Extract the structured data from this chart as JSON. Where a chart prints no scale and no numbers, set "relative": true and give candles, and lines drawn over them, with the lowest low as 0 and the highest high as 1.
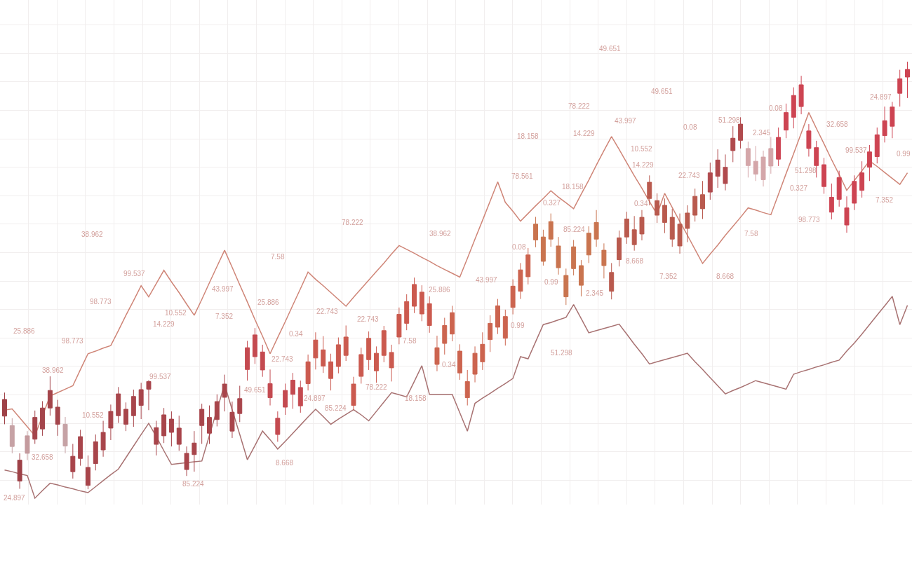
{
  "chart_data": {
    "type": "candlestick",
    "relative": true,
    "grid": true,
    "categories": [
      null,
      null,
      null,
      null,
      null,
      null,
      null,
      null,
      null,
      null,
      null,
      null,
      null,
      null,
      null,
      null,
      null,
      null,
      null,
      null,
      null,
      null,
      null,
      null,
      null,
      null,
      null,
      null,
      null,
      null,
      null,
      null,
      null,
      null,
      null,
      null,
      null,
      null,
      null,
      null,
      null,
      null,
      null,
      null,
      null,
      null,
      null,
      null,
      null,
      null,
      null,
      null,
      null,
      null,
      null,
      null,
      null,
      null,
      null,
      null,
      null,
      null,
      null,
      null,
      null,
      null,
      null,
      null,
      null,
      null,
      null,
      null,
      null,
      null,
      null,
      null,
      null,
      null,
      null,
      null,
      null,
      null,
      null,
      null,
      null,
      null,
      null,
      null,
      null,
      null,
      null,
      null,
      null,
      null,
      null,
      null,
      null,
      null,
      null,
      null,
      null,
      null,
      null,
      null,
      null,
      null,
      null,
      null,
      null,
      null,
      null,
      null,
      null,
      null,
      null,
      null,
      null,
      null,
      null,
      null
    ],
    "ohlc": [
      [
        0.171,
        0.226,
        0.152,
        0.21
      ],
      [
        0.1,
        0.166,
        0.084,
        0.149
      ],
      [
        0.019,
        0.084,
        0.001,
        0.068
      ],
      [
        0.084,
        0.136,
        0.068,
        0.125
      ],
      [
        0.117,
        0.184,
        0.106,
        0.168
      ],
      [
        0.141,
        0.206,
        0.125,
        0.19
      ],
      [
        0.19,
        0.264,
        0.172,
        0.231
      ],
      [
        0.152,
        0.209,
        0.125,
        0.192
      ],
      [
        0.101,
        0.169,
        0.084,
        0.152
      ],
      [
        0.041,
        0.106,
        0.025,
        0.077
      ],
      [
        0.072,
        0.139,
        0.055,
        0.123
      ],
      [
        0.009,
        0.079,
        0,
        0.051
      ],
      [
        0.06,
        0.128,
        0.044,
        0.111
      ],
      [
        0.092,
        0.16,
        0.076,
        0.133
      ],
      [
        0.143,
        0.198,
        0.115,
        0.182
      ],
      [
        0.172,
        0.239,
        0.155,
        0.223
      ],
      [
        0.152,
        0.203,
        0.136,
        0.187
      ],
      [
        0.172,
        0.233,
        0.146,
        0.217
      ],
      [
        0.196,
        0.249,
        0.164,
        0.233
      ],
      [
        0.234,
        0.255,
        0.185,
        0.252
      ],
      [
        0.105,
        0.16,
        0.079,
        0.144
      ],
      [
        0.125,
        0.19,
        0.108,
        0.174
      ],
      [
        0.133,
        0.182,
        0.1,
        0.164
      ],
      [
        0.105,
        0.172,
        0.09,
        0.143
      ],
      [
        0.046,
        0.1,
        0.031,
        0.084
      ],
      [
        0.081,
        0.136,
        0.041,
        0.108
      ],
      [
        0.149,
        0.2,
        0.106,
        0.187
      ],
      [
        0.131,
        0.196,
        0.106,
        0.168
      ],
      [
        0.163,
        0.222,
        0.147,
        0.205
      ],
      [
        0.215,
        0.268,
        0.182,
        0.246
      ],
      [
        0.136,
        0.205,
        0.12,
        0.18
      ],
      [
        0.177,
        0.242,
        0.157,
        0.212
      ],
      [
        0.28,
        0.347,
        0.254,
        0.331
      ],
      [
        0.31,
        0.377,
        0.293,
        0.361
      ],
      [
        0.279,
        0.338,
        0.263,
        0.321
      ],
      [
        0.214,
        0.28,
        0.196,
        0.247
      ],
      [
        0.128,
        0.182,
        0.111,
        0.166
      ],
      [
        0.192,
        0.247,
        0.174,
        0.231
      ],
      [
        0.222,
        0.272,
        0.188,
        0.255
      ],
      [
        0.195,
        0.254,
        0.179,
        0.238
      ],
      [
        0.247,
        0.315,
        0.231,
        0.298
      ],
      [
        0.307,
        0.367,
        0.28,
        0.349
      ],
      [
        0.288,
        0.358,
        0.272,
        0.326
      ],
      [
        0.259,
        0.317,
        0.231,
        0.298
      ],
      [
        0.287,
        0.355,
        0.271,
        0.338
      ],
      [
        0.313,
        0.383,
        0.3,
        0.356
      ],
      [
        0.196,
        0.263,
        0.185,
        0.246
      ],
      [
        0.264,
        0.331,
        0.247,
        0.315
      ],
      [
        0.303,
        0.369,
        0.279,
        0.353
      ],
      [
        0.277,
        0.334,
        0.249,
        0.318
      ],
      [
        0.313,
        0.382,
        0.297,
        0.371
      ],
      [
        0.284,
        0.338,
        0.252,
        0.32
      ],
      [
        0.356,
        0.425,
        0.339,
        0.409
      ],
      [
        0.388,
        0.456,
        0.372,
        0.439
      ],
      [
        0.428,
        0.495,
        0.412,
        0.479
      ],
      [
        0.41,
        0.477,
        0.393,
        0.461
      ],
      [
        0.383,
        0.451,
        0.366,
        0.434
      ],
      [
        0.292,
        0.359,
        0.276,
        0.331
      ],
      [
        0.341,
        0.401,
        0.315,
        0.383
      ],
      [
        0.363,
        0.429,
        0.346,
        0.413
      ],
      [
        0.272,
        0.339,
        0.256,
        0.323
      ],
      [
        0.214,
        0.279,
        0.196,
        0.252
      ],
      [
        0.269,
        0.334,
        0.25,
        0.318
      ],
      [
        0.298,
        0.367,
        0.279,
        0.339
      ],
      [
        0.35,
        0.407,
        0.321,
        0.388
      ],
      [
        0.379,
        0.445,
        0.363,
        0.429
      ],
      [
        0.353,
        0.42,
        0.336,
        0.404
      ],
      [
        0.425,
        0.491,
        0.409,
        0.475
      ],
      [
        0.463,
        0.529,
        0.445,
        0.513
      ],
      [
        0.497,
        0.564,
        0.479,
        0.548
      ],
      [
        0.583,
        0.637,
        0.566,
        0.62
      ],
      [
        0.533,
        0.607,
        0.523,
        0.59
      ],
      [
        0.585,
        0.645,
        0.567,
        0.626
      ],
      [
        0.518,
        0.59,
        0.502,
        0.569
      ],
      [
        0.45,
        0.516,
        0.431,
        0.5
      ],
      [
        0.516,
        0.583,
        0.5,
        0.567
      ],
      [
        0.477,
        0.536,
        0.451,
        0.523
      ],
      [
        0.548,
        0.615,
        0.529,
        0.599
      ],
      [
        0.585,
        0.653,
        0.567,
        0.624
      ],
      [
        0.523,
        0.575,
        0.493,
        0.559
      ],
      [
        0.463,
        0.529,
        0.444,
        0.507
      ],
      [
        0.537,
        0.605,
        0.521,
        0.588
      ],
      [
        0.59,
        0.649,
        0.574,
        0.632
      ],
      [
        0.572,
        0.639,
        0.558,
        0.607
      ],
      [
        0.597,
        0.653,
        0.582,
        0.636
      ],
      [
        0.68,
        0.734,
        0.664,
        0.718
      ],
      [
        0.641,
        0.692,
        0.623,
        0.675
      ],
      [
        0.624,
        0.68,
        0.599,
        0.664
      ],
      [
        0.585,
        0.656,
        0.567,
        0.636
      ],
      [
        0.569,
        0.645,
        0.551,
        0.62
      ],
      [
        0.61,
        0.664,
        0.578,
        0.646
      ],
      [
        0.641,
        0.703,
        0.626,
        0.685
      ],
      [
        0.656,
        0.721,
        0.632,
        0.689
      ],
      [
        0.695,
        0.764,
        0.677,
        0.74
      ],
      [
        0.732,
        0.795,
        0.705,
        0.77
      ],
      [
        0.715,
        0.783,
        0.699,
        0.753
      ],
      [
        0.792,
        0.849,
        0.765,
        0.821
      ],
      [
        0.816,
        0.87,
        0.797,
        0.854
      ],
      [
        0.757,
        0.813,
        0.729,
        0.797
      ],
      [
        0.737,
        0.803,
        0.721,
        0.767
      ],
      [
        0.724,
        0.792,
        0.708,
        0.777
      ],
      [
        0.756,
        0.824,
        0.738,
        0.797
      ],
      [
        0.772,
        0.846,
        0.756,
        0.823
      ],
      [
        0.84,
        0.902,
        0.821,
        0.881
      ],
      [
        0.87,
        0.94,
        0.844,
        0.921
      ],
      [
        0.895,
        0.967,
        0.877,
        0.946
      ],
      [
        0.797,
        0.854,
        0.778,
        0.838
      ],
      [
        0.757,
        0.815,
        0.729,
        0.799
      ],
      [
        0.708,
        0.775,
        0.691,
        0.759
      ],
      [
        0.648,
        0.715,
        0.631,
        0.683
      ],
      [
        0.678,
        0.745,
        0.661,
        0.729
      ],
      [
        0.618,
        0.685,
        0.6,
        0.658
      ],
      [
        0.669,
        0.734,
        0.653,
        0.72
      ],
      [
        0.699,
        0.767,
        0.682,
        0.74
      ],
      [
        0.753,
        0.805,
        0.721,
        0.789
      ],
      [
        0.778,
        0.846,
        0.762,
        0.829
      ],
      [
        0.827,
        0.895,
        0.811,
        0.862
      ],
      [
        0.849,
        0.906,
        0.821,
        0.894
      ],
      [
        0.926,
        0.981,
        0.895,
        0.96
      ],
      [
        0.964,
        1,
        0.915,
        0.982
      ]
    ],
    "colors": [
      "#9e4147",
      "#c6a2a5",
      "#9e4147",
      "#c49b9e",
      "#a4454b",
      "#a4454b",
      "#a4454b",
      "#a4454b",
      "#c6a2a5",
      "#a8454b",
      "#a8454b",
      "#a8454b",
      "#a8454b",
      "#a8454b",
      "#a8454b",
      "#a8454b",
      "#a8454b",
      "#a8454b",
      "#a8454b",
      "#a8454b",
      "#a8454b",
      "#a8454b",
      "#a8454b",
      "#a8454b",
      "#a8454b",
      "#a8454b",
      "#a8454b",
      "#a8454b",
      "#a8454b",
      "#a8454b",
      "#a8454b",
      "#a8454b",
      "#c44a50",
      "#c44a50",
      "#c44a50",
      "#c44a50",
      "#c44a50",
      "#c44a50",
      "#c44a50",
      "#c44a50",
      "#cb5a4f",
      "#cb5a4f",
      "#cb5a4f",
      "#cb5a4f",
      "#cb5a4f",
      "#cb5a4f",
      "#cb5a4f",
      "#cb5a4f",
      "#cb5a4f",
      "#cb5a4f",
      "#cb5a4f",
      "#cb5a4f",
      "#cb5a4f",
      "#cb5a4f",
      "#cb5a4f",
      "#cb5a4f",
      "#cb5a4f",
      "#cc644f",
      "#cc644f",
      "#cc644f",
      "#cc644f",
      "#cc644f",
      "#cc644f",
      "#cc644f",
      "#cc644f",
      "#cc644f",
      "#cc644f",
      "#cc644f",
      "#cc644f",
      "#cc644f",
      "#c9744f",
      "#c9744f",
      "#c9744f",
      "#c9744f",
      "#c9744f",
      "#c9744f",
      "#c9744f",
      "#c9744f",
      "#c9744f",
      "#c9744f",
      "#b95a4e",
      "#b95a4e",
      "#b95a4e",
      "#b95a4e",
      "#b95a4e",
      "#b95a4e",
      "#b95a4e",
      "#b95a4e",
      "#b95a4e",
      "#b95a4e",
      "#b95a4e",
      "#b95a4e",
      "#b95a4e",
      "#b04a4d",
      "#b04a4d",
      "#b04a4d",
      "#b04a4d",
      "#b04a4d",
      "#d4a6a9",
      "#d4a6a9",
      "#d4a6a9",
      "#d4a6a9",
      "#cd4452",
      "#cd4452",
      "#cd4452",
      "#cd4452",
      "#cd4452",
      "#cd4452",
      "#cd4452",
      "#cd4452",
      "#cd4452",
      "#cd4452",
      "#cd4452",
      "#cd4452",
      "#cd4452",
      "#cd4452",
      "#cd4452",
      "#cd4452",
      "#cd4452",
      "#cd4452"
    ],
    "series": [
      {
        "type": "line",
        "color": "#cf8577",
        "values": [
          0.185,
          0.188,
          0.167,
          0.146,
          0.125,
          0.172,
          0.218,
          0.226,
          0.234,
          0.242,
          0.28,
          0.317,
          0.323,
          0.33,
          0.336,
          0.371,
          0.407,
          0.441,
          0.476,
          0.45,
          0.481,
          0.512,
          0.485,
          0.46,
          0.433,
          0.407,
          0.444,
          0.483,
          0.521,
          0.559,
          0.519,
          0.478,
          0.438,
          0.397,
          0.358,
          0.317,
          0.355,
          0.392,
          0.431,
          0.469,
          0.508,
          0.491,
          0.476,
          0.46,
          0.444,
          0.428,
          0.449,
          0.469,
          0.489,
          0.509,
          0.529,
          0.55,
          0.57,
          0.561,
          0.552,
          0.542,
          0.533,
          0.523,
          0.514,
          0.505,
          0.496,
          0.54,
          0.585,
          0.629,
          0.674,
          0.719,
          0.671,
          0.65,
          0.627,
          0.645,
          0.663,
          0.68,
          0.698,
          0.683,
          0.67,
          0.656,
          0.69,
          0.723,
          0.758,
          0.792,
          0.825,
          0.795,
          0.764,
          0.733,
          0.704,
          0.673,
          0.643,
          0.692,
          0.659,
          0.626,
          0.594,
          0.561,
          0.528,
          0.55,
          0.571,
          0.594,
          0.615,
          0.636,
          0.658,
          0.653,
          0.647,
          0.642,
          0.69,
          0.738,
          0.785,
          0.833,
          0.881,
          0.844,
          0.808,
          0.771,
          0.736,
          0.699,
          0.722,
          0.745,
          0.768,
          0.755,
          0.741,
          0.727,
          0.713,
          0.74
        ]
      },
      {
        "type": "line",
        "color": "#a87272",
        "values": [
          0.045,
          0.041,
          0.036,
          0.032,
          -0.021,
          -0.003,
          0.014,
          0.01,
          0.005,
          0.001,
          -0.004,
          -0.008,
          0.006,
          0.02,
          0.034,
          0.047,
          0.074,
          0.101,
          0.128,
          0.154,
          0.123,
          0.09,
          0.058,
          0.06,
          0.062,
          0.064,
          0.066,
          0.126,
          0.186,
          0.245,
          0.186,
          0.128,
          0.069,
          0.102,
          0.136,
          0.116,
          0.094,
          0.112,
          0.131,
          0.15,
          0.169,
          0.187,
          0.17,
          0.152,
          0.164,
          0.175,
          0.186,
          0.174,
          0.16,
          0.182,
          0.204,
          0.226,
          0.221,
          0.216,
          0.252,
          0.289,
          0.222,
          0.222,
          0.222,
          0.222,
          0.179,
          0.136,
          0.201,
          0.213,
          0.224,
          0.236,
          0.247,
          0.259,
          0.31,
          0.305,
          0.345,
          0.385,
          0.39,
          0.396,
          0.402,
          0.432,
          0.399,
          0.366,
          0.371,
          0.376,
          0.381,
          0.386,
          0.363,
          0.339,
          0.317,
          0.293,
          0.298,
          0.303,
          0.308,
          0.313,
          0.318,
          0.298,
          0.28,
          0.261,
          0.242,
          0.223,
          0.231,
          0.238,
          0.246,
          0.254,
          0.249,
          0.244,
          0.239,
          0.234,
          0.269,
          0.275,
          0.28,
          0.286,
          0.291,
          0.297,
          0.302,
          0.323,
          0.342,
          0.363,
          0.385,
          0.407,
          0.429,
          0.451,
          0.385,
          0.43
        ]
      }
    ],
    "annotations": [
      "49.651",
      "49.651",
      "78.222",
      "0.08",
      "43.997",
      "51.298",
      "32.658",
      "0.08",
      "24.897",
      "14.229",
      "18.158",
      "10.552",
      "51.298",
      "0.99",
      "14.229",
      "2.345",
      "99.537",
      "78.561",
      "22.743",
      "0.327",
      "18.158",
      "7.352",
      "0.327",
      "0.34",
      "98.773",
      "78.222",
      "85.224",
      "38.962",
      "38.962",
      "7.58",
      "8.668",
      "0.08",
      "7.58",
      "43.997",
      "99.537",
      "7.352",
      "8.668",
      "0.99",
      "43.997",
      "2.345",
      "25.886",
      "98.773",
      "25.886",
      "10.552",
      "22.743",
      "7.352",
      "14.229",
      "0.99",
      "25.886",
      "7.58",
      "0.34",
      "22.743",
      "98.773",
      "0.34",
      "51.298",
      "22.743",
      "78.222",
      "99.537",
      "24.897",
      "49.651",
      "18.158",
      "38.962",
      "85.224",
      "10.552",
      "8.668",
      "85.224",
      "32.658",
      "24.897"
    ]
  }
}
